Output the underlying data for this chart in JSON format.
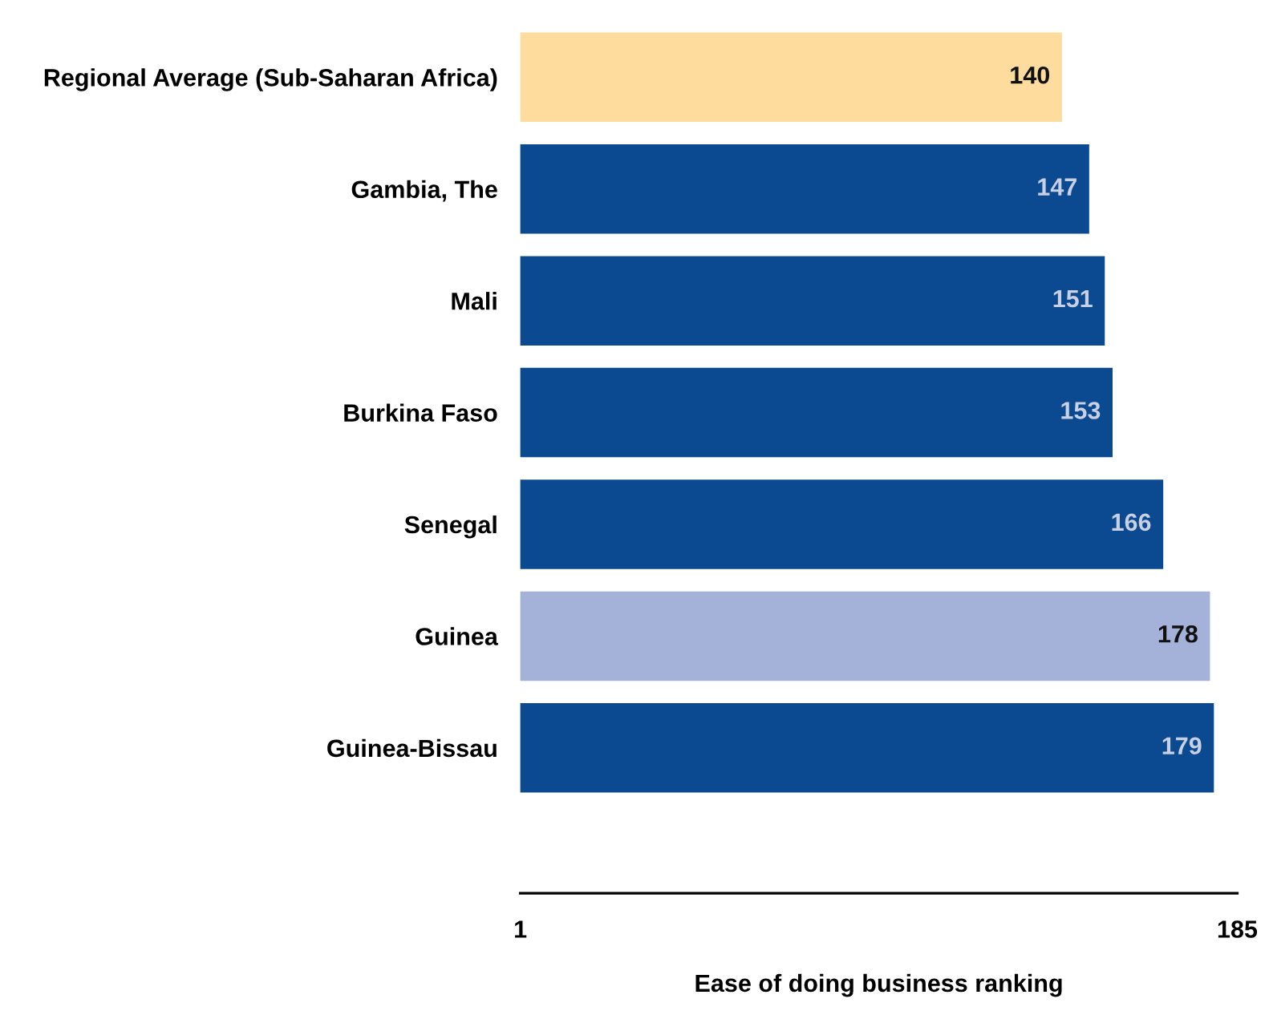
{
  "chart_data": {
    "type": "bar",
    "orientation": "horizontal",
    "xlabel": "Ease of doing business ranking",
    "categories": [
      "Regional Average (Sub-Saharan Africa)",
      "Gambia, The",
      "Mali",
      "Burkina Faso",
      "Senegal",
      "Guinea",
      "Guinea-Bissau"
    ],
    "values": [
      140,
      147,
      151,
      153,
      166,
      178,
      179
    ],
    "colors": [
      "#fddc9e",
      "#0b4a91",
      "#0b4a91",
      "#0b4a91",
      "#0b4a91",
      "#a4b1d8",
      "#0b4a91"
    ],
    "data_labels": true,
    "xlim": [
      1,
      185
    ],
    "xticks": [
      1,
      185
    ]
  }
}
